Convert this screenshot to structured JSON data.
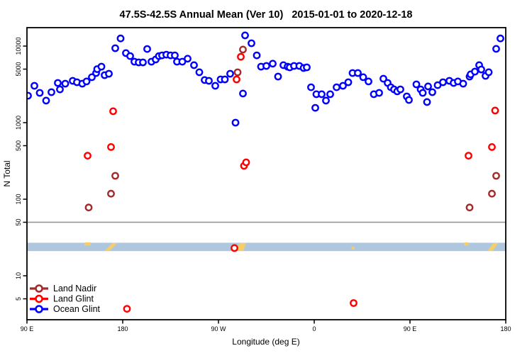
{
  "title": "47.5S-42.5S Annual Mean (Ver 10)   2015-01-01 to 2020-12-18",
  "axes": {
    "x": {
      "label": "Longitude (deg E)",
      "ticks": [
        {
          "value": 90,
          "label": "90 E"
        },
        {
          "value": 180,
          "label": "180"
        },
        {
          "value": 270,
          "label": "90 W"
        },
        {
          "value": 360,
          "label": "0"
        },
        {
          "value": 450,
          "label": "90 E"
        },
        {
          "value": 540,
          "label": "180"
        }
      ]
    },
    "y": {
      "label": "N Total",
      "ticks": [
        {
          "value": 10000,
          "label": "10000"
        },
        {
          "value": 5000,
          "label": "5000"
        },
        {
          "value": 1000,
          "label": "1000"
        },
        {
          "value": 500,
          "label": "500"
        },
        {
          "value": 100,
          "label": "100"
        },
        {
          "value": 50,
          "label": "50"
        },
        {
          "value": 10,
          "label": "10"
        },
        {
          "value": 5,
          "label": "5"
        }
      ]
    }
  },
  "legend": {
    "items": [
      {
        "label": "Land Nadir",
        "color": "#A52A2A"
      },
      {
        "label": "Land Glint",
        "color": "#FF0000"
      },
      {
        "label": "Ocean Glint",
        "color": "#0000FF"
      }
    ]
  },
  "chart_data": {
    "type": "scatter",
    "title": "47.5S-42.5S Annual Mean (Ver 10)   2015-01-01 to 2020-12-18",
    "xlabel": "Longitude (deg E)",
    "ylabel": "N Total",
    "x_axis_units": "degrees East, axis runs 90E around the globe to 180 (90 to 540)",
    "y_scale": "log",
    "xlim": [
      90,
      540
    ],
    "ylim": [
      2.7,
      17000
    ],
    "grid": false,
    "legend_position": "bottom-left",
    "marker": "open-circle",
    "reference_line": {
      "value": 50,
      "color": "#909090"
    },
    "band": {
      "color": "#AFC6DF",
      "value_range": [
        21,
        27
      ],
      "patch_color": "#F5CE68",
      "patches": [
        {
          "lon_range": [
            144,
            150
          ],
          "form": "spot_top"
        },
        {
          "lon_range": [
            163,
            175
          ],
          "form": "streak"
        },
        {
          "lon_range": [
            287,
            296
          ],
          "form": "wedge"
        },
        {
          "lon_range": [
            395,
            398
          ],
          "form": "spot_low"
        },
        {
          "lon_range": [
            501,
            505
          ],
          "form": "spot_top"
        },
        {
          "lon_range": [
            523,
            533
          ],
          "form": "streak"
        }
      ]
    },
    "series": [
      {
        "name": "Land Nadir",
        "color": "#A52A2A",
        "points": [
          [
            148,
            78
          ],
          [
            169,
            118
          ],
          [
            173,
            202
          ],
          [
            288,
            4540
          ],
          [
            293,
            9000
          ],
          [
            506,
            78
          ],
          [
            527,
            118
          ],
          [
            531,
            202
          ]
        ]
      },
      {
        "name": "Land Glint",
        "color": "#FF0000",
        "points": [
          [
            147,
            370
          ],
          [
            169,
            480
          ],
          [
            171,
            1410
          ],
          [
            184,
            3.7
          ],
          [
            285,
            23
          ],
          [
            287,
            3670
          ],
          [
            291,
            7250
          ],
          [
            294,
            273
          ],
          [
            296,
            303
          ],
          [
            397,
            4.4
          ],
          [
            505,
            370
          ],
          [
            527,
            480
          ],
          [
            530,
            1440
          ]
        ]
      },
      {
        "name": "Ocean Glint",
        "color": "#0000FF",
        "points": [
          [
            91,
            2250
          ],
          [
            97,
            3030
          ],
          [
            102,
            2450
          ],
          [
            108,
            1940
          ],
          [
            113,
            2500
          ],
          [
            119,
            3300
          ],
          [
            121,
            2720
          ],
          [
            126,
            3230
          ],
          [
            133,
            3520
          ],
          [
            137,
            3370
          ],
          [
            142,
            3230
          ],
          [
            146,
            3450
          ],
          [
            151,
            3920
          ],
          [
            155,
            4450
          ],
          [
            156,
            5000
          ],
          [
            160,
            5390
          ],
          [
            163,
            4170
          ],
          [
            167,
            4350
          ],
          [
            173,
            9380
          ],
          [
            178,
            12600
          ],
          [
            183,
            8100
          ],
          [
            187,
            7400
          ],
          [
            191,
            6250
          ],
          [
            195,
            6120
          ],
          [
            199,
            6120
          ],
          [
            203,
            9170
          ],
          [
            207,
            6250
          ],
          [
            211,
            6680
          ],
          [
            214,
            7400
          ],
          [
            217,
            7560
          ],
          [
            221,
            7730
          ],
          [
            225,
            7560
          ],
          [
            229,
            7560
          ],
          [
            231,
            6250
          ],
          [
            236,
            6250
          ],
          [
            241,
            6840
          ],
          [
            247,
            5640
          ],
          [
            252,
            4550
          ],
          [
            257,
            3600
          ],
          [
            261,
            3520
          ],
          [
            267,
            3030
          ],
          [
            272,
            3670
          ],
          [
            276,
            3670
          ],
          [
            281,
            4350
          ],
          [
            286,
            1000
          ],
          [
            293,
            2400
          ],
          [
            295,
            13800
          ],
          [
            301,
            10900
          ],
          [
            306,
            7560
          ],
          [
            310,
            5390
          ],
          [
            315,
            5510
          ],
          [
            321,
            5890
          ],
          [
            326,
            4000
          ],
          [
            331,
            5640
          ],
          [
            335,
            5390
          ],
          [
            337,
            5280
          ],
          [
            341,
            5510
          ],
          [
            346,
            5510
          ],
          [
            350,
            5170
          ],
          [
            353,
            5280
          ],
          [
            357,
            2900
          ],
          [
            361,
            1560
          ],
          [
            362,
            2350
          ],
          [
            367,
            2350
          ],
          [
            371,
            1940
          ],
          [
            375,
            2350
          ],
          [
            381,
            2900
          ],
          [
            387,
            3030
          ],
          [
            392,
            3370
          ],
          [
            396,
            4450
          ],
          [
            401,
            4450
          ],
          [
            406,
            3920
          ],
          [
            411,
            3450
          ],
          [
            416,
            2350
          ],
          [
            421,
            2450
          ],
          [
            425,
            3750
          ],
          [
            429,
            3300
          ],
          [
            432,
            2900
          ],
          [
            435,
            2720
          ],
          [
            438,
            2560
          ],
          [
            441,
            2720
          ],
          [
            447,
            2200
          ],
          [
            449,
            1980
          ],
          [
            456,
            3160
          ],
          [
            460,
            2720
          ],
          [
            462,
            2450
          ],
          [
            466,
            1860
          ],
          [
            467,
            2970
          ],
          [
            471,
            2500
          ],
          [
            476,
            3090
          ],
          [
            481,
            3370
          ],
          [
            487,
            3520
          ],
          [
            491,
            3300
          ],
          [
            495,
            3450
          ],
          [
            500,
            3230
          ],
          [
            506,
            4000
          ],
          [
            507,
            4270
          ],
          [
            511,
            4640
          ],
          [
            515,
            5640
          ],
          [
            517,
            4950
          ],
          [
            521,
            4080
          ],
          [
            524,
            4550
          ],
          [
            531,
            9200
          ],
          [
            535,
            12600
          ]
        ]
      }
    ]
  }
}
